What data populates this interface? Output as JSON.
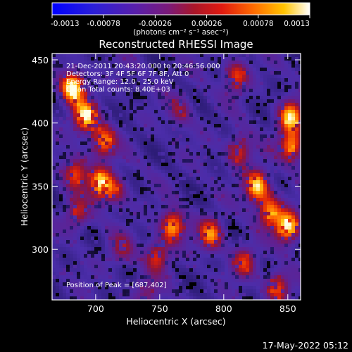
{
  "chart_data": {
    "type": "heatmap",
    "title": "Reconstructed RHESSI Image",
    "xlabel": "Heliocentric X (arcsec)",
    "ylabel": "Heliocentric Y (arcsec)",
    "xlim": [
      666,
      860
    ],
    "ylim": [
      260,
      455
    ],
    "x_ticks": [
      700,
      750,
      800,
      850
    ],
    "y_ticks": [
      300,
      350,
      400,
      450
    ],
    "annotations": [
      "21-Dec-2011 20:43:20.000 to 20:46:56.000",
      "Detectors: 3F 4F 5F 6F 7F 8F, Att 0",
      "Energy Range: 12.0 - 25.0 keV",
      "Clean     Total counts: 8.40E+03"
    ],
    "peak_label": "Position of Peak = [687,402]",
    "peak_position": [
      687,
      402
    ],
    "colorbar": {
      "min": -0.0013,
      "max": 0.0013,
      "ticks": [
        "-0.0013",
        "-0.00078",
        "-0.00026",
        "0.00026",
        "0.00078",
        "0.0013"
      ],
      "units": "(photons cm⁻² s⁻¹ asec⁻²)"
    },
    "hot_spots": [
      {
        "x": 682,
        "y": 428,
        "peak": 1.0
      },
      {
        "x": 692,
        "y": 405,
        "peak": 0.9
      },
      {
        "x": 706,
        "y": 385,
        "peak": 0.7
      },
      {
        "x": 704,
        "y": 352,
        "peak": 0.85
      },
      {
        "x": 684,
        "y": 360,
        "peak": 0.6
      },
      {
        "x": 686,
        "y": 328,
        "peak": 0.45
      },
      {
        "x": 716,
        "y": 346,
        "peak": 0.4
      },
      {
        "x": 720,
        "y": 300,
        "peak": 0.35
      },
      {
        "x": 760,
        "y": 318,
        "peak": 0.8
      },
      {
        "x": 748,
        "y": 295,
        "peak": 0.55
      },
      {
        "x": 790,
        "y": 312,
        "peak": 0.7
      },
      {
        "x": 816,
        "y": 290,
        "peak": 0.5
      },
      {
        "x": 812,
        "y": 378,
        "peak": 0.55
      },
      {
        "x": 826,
        "y": 350,
        "peak": 0.9
      },
      {
        "x": 836,
        "y": 330,
        "peak": 0.7
      },
      {
        "x": 850,
        "y": 318,
        "peak": 0.95
      },
      {
        "x": 852,
        "y": 405,
        "peak": 0.85
      },
      {
        "x": 853,
        "y": 382,
        "peak": 0.75
      },
      {
        "x": 842,
        "y": 270,
        "peak": 0.6
      },
      {
        "x": 810,
        "y": 437,
        "peak": 0.55
      },
      {
        "x": 766,
        "y": 410,
        "peak": 0.35
      },
      {
        "x": 740,
        "y": 265,
        "peak": 0.3
      }
    ],
    "grid": false,
    "legend": "colorbar-top"
  },
  "footer": {
    "timestamp": "17-May-2022 05:12"
  }
}
